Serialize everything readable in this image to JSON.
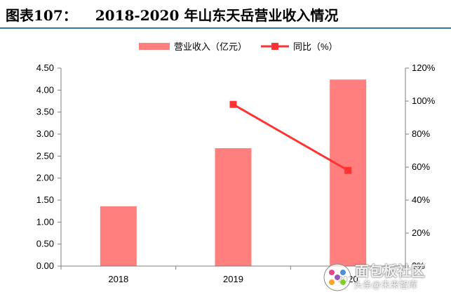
{
  "title": {
    "label": "图表107：",
    "text": "2018-2020 年山东天岳营业收入情况"
  },
  "colors": {
    "bar": "#ff7f7f",
    "line": "#ff3333",
    "title_rule": "#2e74b5",
    "axis": "#7f7f7f"
  },
  "watermark": {
    "line1": "面包板社区",
    "line2": "头条@未来智库"
  },
  "chart_data": {
    "type": "bar",
    "categories": [
      "2018",
      "2019",
      "2020"
    ],
    "series": [
      {
        "name": "营业收入（亿元）",
        "type": "bar",
        "axis": "left",
        "values": [
          1.36,
          2.68,
          4.24
        ]
      },
      {
        "name": "同比（%）",
        "type": "line",
        "axis": "right",
        "values": [
          null,
          0.98,
          0.58
        ]
      }
    ],
    "ylim_left": [
      0,
      4.5
    ],
    "yticks_left": [
      "0.00",
      "0.50",
      "1.00",
      "1.50",
      "2.00",
      "2.50",
      "3.00",
      "3.50",
      "4.00",
      "4.50"
    ],
    "ylim_right": [
      0,
      1.2
    ],
    "yticks_right": [
      "0%",
      "20%",
      "40%",
      "60%",
      "80%",
      "100%",
      "120%"
    ],
    "legend_position": "top-center",
    "grid": false
  }
}
